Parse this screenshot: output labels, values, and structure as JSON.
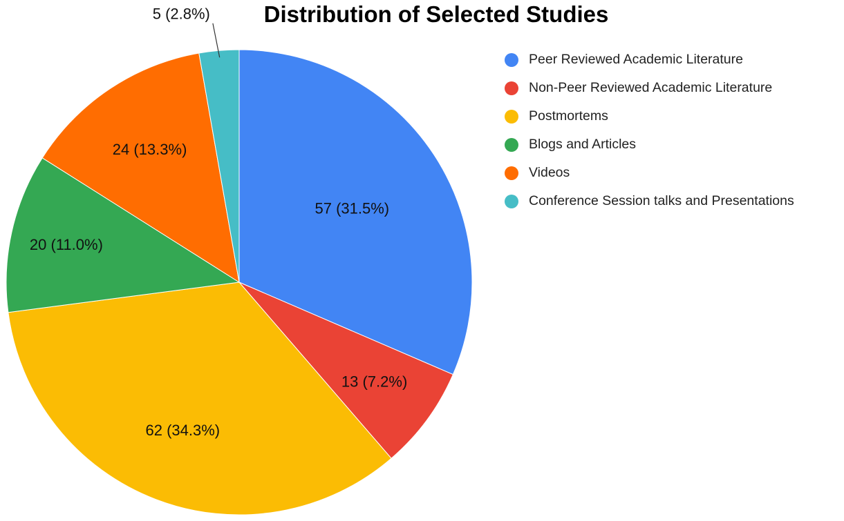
{
  "chart_data": {
    "type": "pie",
    "title": "Distribution of Selected Studies",
    "slices": [
      {
        "name": "Peer Reviewed Academic Literature",
        "value": 57,
        "label": "57 (31.5%)",
        "color": "#4285F4"
      },
      {
        "name": "Non-Peer Reviewed Academic Literature",
        "value": 13,
        "label": "13 (7.2%)",
        "color": "#EA4335"
      },
      {
        "name": "Postmortems",
        "value": 62,
        "label": "62 (34.3%)",
        "color": "#FBBC04"
      },
      {
        "name": "Blogs and Articles",
        "value": 20,
        "label": "20 (11.0%)",
        "color": "#34A853"
      },
      {
        "name": "Videos",
        "value": 24,
        "label": "24 (13.3%)",
        "color": "#FF6D01"
      },
      {
        "name": "Conference Session talks and Presentations",
        "value": 5,
        "label": "5 (2.8%)",
        "color": "#46BDC6"
      }
    ],
    "legend_position": "right",
    "start": "top, clockwise"
  }
}
